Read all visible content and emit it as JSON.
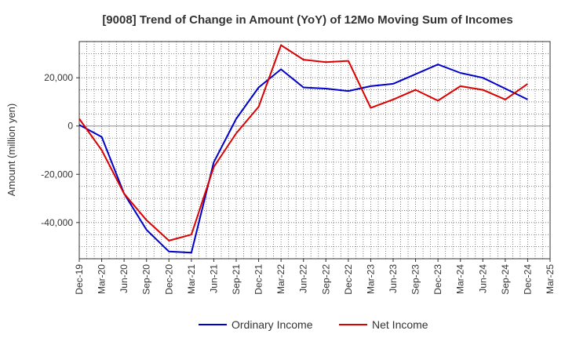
{
  "chart_data": {
    "type": "line",
    "title": "[9008]  Trend of Change in Amount (YoY) of 12Mo Moving Sum of Incomes",
    "xlabel": "",
    "ylabel": "Amount (million yen)",
    "ylim": [
      -55000,
      35000
    ],
    "y_ticks": [
      20000,
      0,
      -20000,
      -40000
    ],
    "y_tick_labels": [
      "20,000",
      "0",
      "-20,000",
      "-40,000"
    ],
    "grid": true,
    "legend": "bottom",
    "categories": [
      "Dec-19",
      "Mar-20",
      "Jun-20",
      "Sep-20",
      "Dec-20",
      "Mar-21",
      "Jun-21",
      "Sep-21",
      "Dec-21",
      "Mar-22",
      "Jun-22",
      "Sep-22",
      "Dec-22",
      "Mar-23",
      "Jun-23",
      "Sep-23",
      "Dec-23",
      "Mar-24",
      "Jun-24",
      "Sep-24",
      "Dec-24",
      "Mar-25"
    ],
    "series": [
      {
        "name": "Ordinary Income",
        "color": "#0000cc",
        "values": [
          500,
          -4500,
          -28000,
          -43000,
          -52000,
          -52500,
          -15000,
          3000,
          16000,
          23500,
          16000,
          15500,
          14500,
          16500,
          17500,
          21500,
          25500,
          22000,
          20000,
          15500,
          11000,
          null
        ]
      },
      {
        "name": "Net Income",
        "color": "#dd0000",
        "values": [
          3000,
          -10000,
          -28000,
          -39000,
          -47500,
          -45000,
          -17000,
          -3000,
          8000,
          33500,
          27500,
          26500,
          27000,
          7500,
          11000,
          15000,
          10500,
          16500,
          15000,
          11000,
          17500,
          null
        ]
      }
    ]
  }
}
